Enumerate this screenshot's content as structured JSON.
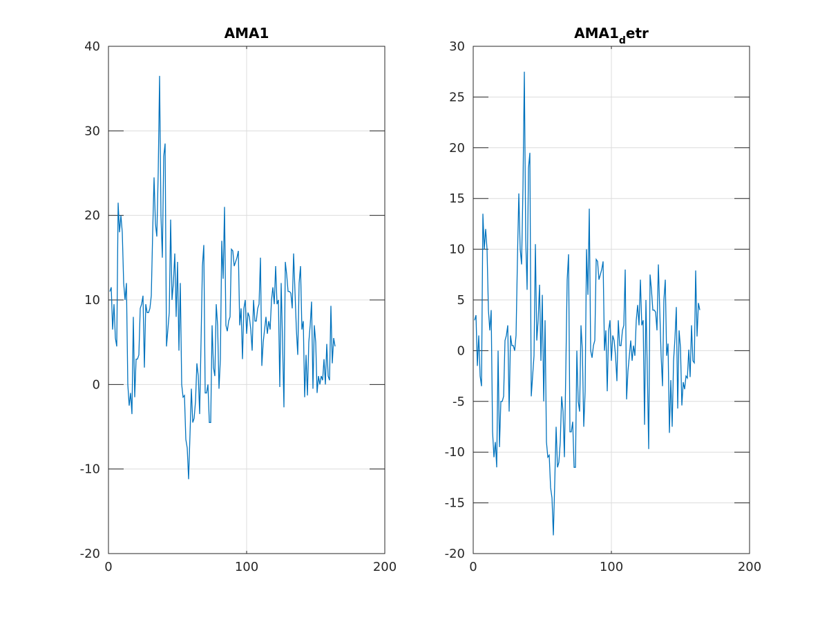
{
  "chart_data": [
    {
      "type": "line",
      "title": [
        "AMA1"
      ],
      "xlim": [
        0,
        200
      ],
      "xticks": [
        0,
        100,
        200
      ],
      "ylim": [
        -20,
        40
      ],
      "yticks": [
        -20,
        -10,
        0,
        10,
        20,
        30,
        40
      ],
      "grid": true,
      "x": [
        1,
        2,
        3,
        4,
        5,
        6,
        7,
        8,
        9,
        10,
        11,
        12,
        13,
        14,
        15,
        16,
        17,
        18,
        19,
        20,
        21,
        22,
        23,
        24,
        25,
        26,
        27,
        28,
        29,
        30,
        31,
        32,
        33,
        34,
        35,
        36,
        37,
        38,
        39,
        40,
        41,
        42,
        43,
        44,
        45,
        46,
        47,
        48,
        49,
        50,
        51,
        52,
        53,
        54,
        55,
        56,
        57,
        58,
        59,
        60,
        61,
        62,
        63,
        64,
        65,
        66,
        67,
        68,
        69,
        70,
        71,
        72,
        73,
        74,
        75,
        76,
        77,
        78,
        79,
        80,
        81,
        82,
        83,
        84,
        85,
        86,
        87,
        88,
        89,
        90,
        91,
        92,
        93,
        94,
        95,
        96,
        97,
        98,
        99,
        100,
        101,
        102,
        103,
        104,
        105,
        106,
        107,
        108,
        109,
        110,
        111,
        112,
        113,
        114,
        115,
        116,
        117,
        118,
        119,
        120,
        121,
        122,
        123,
        124,
        125,
        126,
        127,
        128,
        129,
        130,
        131,
        132,
        133,
        134,
        135,
        136,
        137,
        138,
        139,
        140,
        141,
        142,
        143,
        144,
        145,
        146,
        147,
        148,
        149,
        150,
        151,
        152,
        153,
        154,
        155,
        156,
        157,
        158,
        159,
        160,
        161,
        162,
        163,
        164
      ],
      "series": [
        {
          "color": "#0072bd",
          "values": [
            11,
            11.5,
            6.5,
            9.5,
            5.5,
            4.5,
            21.5,
            18,
            20,
            18,
            12,
            10,
            12,
            0,
            -2.5,
            -1,
            -3.5,
            8,
            -1.5,
            3,
            3,
            3.5,
            9,
            9.5,
            10.5,
            2,
            9.5,
            8.5,
            8.5,
            9,
            10.5,
            18,
            24.5,
            19,
            17.5,
            25,
            36.5,
            20,
            15,
            27,
            28.5,
            4.5,
            6.5,
            8.5,
            19.5,
            10,
            12,
            15.5,
            8,
            14.5,
            4,
            12,
            0,
            -1.5,
            -1.3,
            -6.5,
            -7.5,
            -11.2,
            -6,
            -0.5,
            -4.5,
            -4,
            -2,
            2.5,
            1,
            -3.5,
            5,
            14,
            16.5,
            -1,
            -1,
            0,
            -4.5,
            -4.5,
            7,
            2,
            1,
            9.5,
            7,
            -0.5,
            3,
            17,
            12.5,
            21,
            7,
            6.3,
            7.5,
            8,
            16,
            15.8,
            14,
            14.5,
            15,
            15.8,
            7,
            9,
            3,
            9,
            10,
            6,
            8.5,
            8,
            6.5,
            4,
            10,
            7.5,
            7.5,
            9,
            9.5,
            15,
            2.2,
            5,
            6.5,
            8,
            6,
            7.5,
            6.5,
            10,
            11.5,
            9.5,
            14,
            9.5,
            10,
            -0.3,
            12,
            5,
            -2.7,
            14.5,
            13,
            11,
            11,
            10.8,
            9,
            15.5,
            11,
            6.5,
            3.5,
            12,
            14,
            6.5,
            7.5,
            -1.5,
            3.5,
            -1.3,
            5,
            7,
            9.8,
            -0.5,
            7,
            5,
            -1,
            1,
            0,
            1,
            0.5,
            3,
            0,
            4.8,
            1,
            0.5,
            9.3,
            2.5,
            5.5,
            4.5
          ]
        }
      ]
    },
    {
      "type": "line",
      "title": [
        "AMA1",
        "d",
        "etr"
      ],
      "xlim": [
        0,
        200
      ],
      "xticks": [
        0,
        100,
        200
      ],
      "ylim": [
        -20,
        30
      ],
      "yticks": [
        -20,
        -15,
        -10,
        -5,
        0,
        5,
        10,
        15,
        20,
        25,
        30
      ],
      "grid": true,
      "x": [
        1,
        2,
        3,
        4,
        5,
        6,
        7,
        8,
        9,
        10,
        11,
        12,
        13,
        14,
        15,
        16,
        17,
        18,
        19,
        20,
        21,
        22,
        23,
        24,
        25,
        26,
        27,
        28,
        29,
        30,
        31,
        32,
        33,
        34,
        35,
        36,
        37,
        38,
        39,
        40,
        41,
        42,
        43,
        44,
        45,
        46,
        47,
        48,
        49,
        50,
        51,
        52,
        53,
        54,
        55,
        56,
        57,
        58,
        59,
        60,
        61,
        62,
        63,
        64,
        65,
        66,
        67,
        68,
        69,
        70,
        71,
        72,
        73,
        74,
        75,
        76,
        77,
        78,
        79,
        80,
        81,
        82,
        83,
        84,
        85,
        86,
        87,
        88,
        89,
        90,
        91,
        92,
        93,
        94,
        95,
        96,
        97,
        98,
        99,
        100,
        101,
        102,
        103,
        104,
        105,
        106,
        107,
        108,
        109,
        110,
        111,
        112,
        113,
        114,
        115,
        116,
        117,
        118,
        119,
        120,
        121,
        122,
        123,
        124,
        125,
        126,
        127,
        128,
        129,
        130,
        131,
        132,
        133,
        134,
        135,
        136,
        137,
        138,
        139,
        140,
        141,
        142,
        143,
        144,
        145,
        146,
        147,
        148,
        149,
        150,
        151,
        152,
        153,
        154,
        155,
        156,
        157,
        158,
        159,
        160,
        161,
        162,
        163,
        164
      ],
      "series": [
        {
          "color": "#0072bd",
          "values": [
            3,
            3.5,
            -1.5,
            1.5,
            -2.5,
            -3.5,
            13.5,
            10,
            12,
            10,
            4,
            2,
            4,
            -8,
            -10.5,
            -9,
            -11.5,
            0,
            -9.5,
            -5,
            -5,
            -4.5,
            1,
            1.5,
            2.5,
            -6,
            1.5,
            0.5,
            0.5,
            0,
            1.5,
            9,
            15.5,
            10,
            8.5,
            16,
            27.5,
            11,
            6,
            18,
            19.5,
            -4.5,
            -2.5,
            -0.5,
            10.5,
            1,
            3,
            6.5,
            -1,
            5.5,
            -5,
            3,
            -9,
            -10.5,
            -10.3,
            -13.5,
            -14.5,
            -18.2,
            -13,
            -7.5,
            -11.5,
            -11,
            -9,
            -4.5,
            -6,
            -10.5,
            -2,
            7,
            9.5,
            -8,
            -8,
            -7,
            -11.5,
            -11.5,
            0,
            -5,
            -6,
            2.5,
            0,
            -7.5,
            -4,
            10,
            5.5,
            14,
            0,
            -0.7,
            0.5,
            1,
            9,
            8.8,
            7,
            7.5,
            8,
            8.8,
            0,
            2,
            -4,
            2,
            3,
            -1,
            1.5,
            1,
            -0.5,
            -3,
            3,
            0.5,
            0.5,
            2,
            2.5,
            8,
            -4.8,
            -2,
            -0.5,
            1,
            -1,
            0.5,
            -0.5,
            3,
            4.5,
            2.5,
            7,
            2.5,
            3,
            -7.3,
            5,
            -2,
            -9.7,
            7.5,
            6,
            4,
            4,
            3.8,
            2,
            8.5,
            4,
            -0.5,
            -3.5,
            5,
            7,
            -0.5,
            0.7,
            -8.1,
            -2.9,
            -7.5,
            -1,
            1.2,
            4.3,
            -5.7,
            2,
            0.3,
            -5.4,
            -3.1,
            -3.8,
            -2.5,
            -2.7,
            0.1,
            -2.6,
            2.5,
            -1,
            -1.2,
            7.9,
            1.4,
            4.7,
            4
          ]
        }
      ]
    }
  ]
}
